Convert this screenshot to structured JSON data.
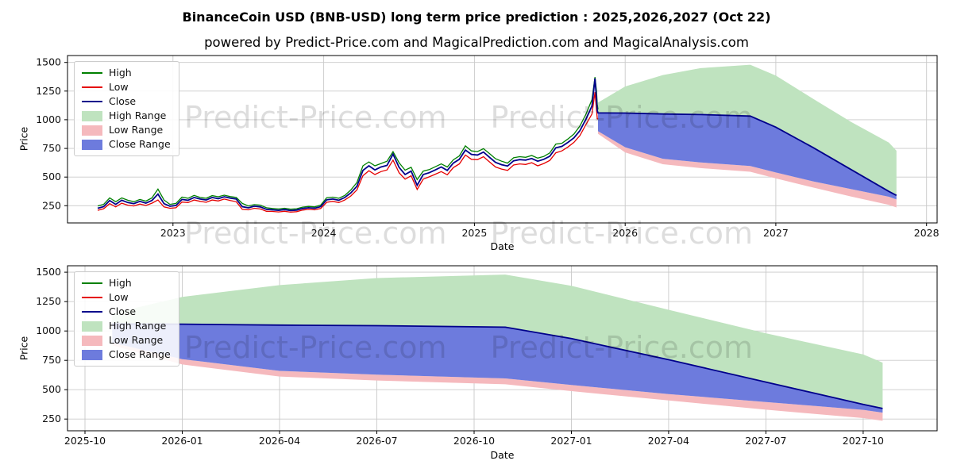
{
  "title": "BinanceCoin USD (BNB-USD) long term price prediction : 2025,2026,2027 (Oct 22)",
  "subtitle": "powered by Predict-Price.com and MagicalPrediction.com and MagicalAnalysis.com",
  "watermark": "Predict-Price.com",
  "colors": {
    "high_line": "#008000",
    "low_line": "#e50000",
    "close_line": "#00008b",
    "high_range_fill": "#bfe3bf",
    "low_range_fill": "#f5b9bd",
    "close_range_fill": "#6d7bdd",
    "grid": "#c9c9c9",
    "spine": "#000000"
  },
  "legend_items": [
    {
      "label": "High",
      "swatch": "line",
      "color": "#008000"
    },
    {
      "label": "Low",
      "swatch": "line",
      "color": "#e50000"
    },
    {
      "label": "Close",
      "swatch": "line",
      "color": "#00008b"
    },
    {
      "label": "High Range",
      "swatch": "patch",
      "color": "#bfe3bf"
    },
    {
      "label": "Low Range",
      "swatch": "patch",
      "color": "#f5b9bd"
    },
    {
      "label": "Close Range",
      "swatch": "patch",
      "color": "#6d7bdd"
    }
  ],
  "chart_data": {
    "type": "line",
    "series_names": [
      "High",
      "Low",
      "Close"
    ],
    "band_names": [
      "High Range",
      "Low Range",
      "Close Range"
    ],
    "history": {
      "x": [
        2022.5,
        2022.54,
        2022.58,
        2022.62,
        2022.66,
        2022.7,
        2022.74,
        2022.78,
        2022.82,
        2022.86,
        2022.9,
        2022.94,
        2022.98,
        2023.02,
        2023.06,
        2023.1,
        2023.14,
        2023.18,
        2023.22,
        2023.26,
        2023.3,
        2023.34,
        2023.38,
        2023.42,
        2023.46,
        2023.5,
        2023.54,
        2023.58,
        2023.62,
        2023.66,
        2023.7,
        2023.74,
        2023.78,
        2023.82,
        2023.86,
        2023.9,
        2023.94,
        2023.98,
        2024.02,
        2024.06,
        2024.1,
        2024.14,
        2024.18,
        2024.22,
        2024.26,
        2024.3,
        2024.34,
        2024.38,
        2024.42,
        2024.46,
        2024.5,
        2024.54,
        2024.58,
        2024.62,
        2024.66,
        2024.7,
        2024.74,
        2024.78,
        2024.82,
        2024.86,
        2024.9,
        2024.94,
        2024.98,
        2025.02,
        2025.06,
        2025.1,
        2025.14,
        2025.18,
        2025.22,
        2025.26,
        2025.3,
        2025.34,
        2025.38,
        2025.42,
        2025.46,
        2025.5,
        2025.54,
        2025.58,
        2025.62,
        2025.66,
        2025.7,
        2025.74,
        2025.78,
        2025.8,
        2025.81,
        2025.815,
        2025.82
      ],
      "high": [
        248,
        262,
        318,
        285,
        318,
        298,
        285,
        305,
        290,
        318,
        395,
        300,
        262,
        270,
        325,
        315,
        340,
        322,
        315,
        338,
        328,
        342,
        330,
        322,
        270,
        248,
        260,
        255,
        232,
        226,
        222,
        228,
        220,
        224,
        238,
        244,
        240,
        256,
        320,
        325,
        315,
        340,
        388,
        452,
        598,
        632,
        598,
        618,
        638,
        722,
        625,
        560,
        585,
        478,
        552,
        565,
        590,
        615,
        588,
        650,
        685,
        772,
        728,
        722,
        748,
        705,
        660,
        638,
        622,
        668,
        678,
        672,
        688,
        665,
        680,
        710,
        788,
        795,
        832,
        875,
        945,
        1048,
        1175,
        1372,
        1250,
        1130,
        1090
      ],
      "low": [
        210,
        224,
        268,
        240,
        272,
        255,
        248,
        265,
        252,
        272,
        300,
        240,
        228,
        232,
        282,
        278,
        300,
        288,
        280,
        300,
        292,
        308,
        296,
        285,
        218,
        214,
        228,
        222,
        202,
        200,
        196,
        202,
        194,
        198,
        212,
        218,
        214,
        226,
        280,
        288,
        278,
        300,
        335,
        388,
        512,
        555,
        522,
        548,
        562,
        648,
        538,
        482,
        512,
        392,
        482,
        502,
        525,
        548,
        520,
        582,
        615,
        692,
        655,
        652,
        678,
        632,
        588,
        570,
        558,
        605,
        615,
        610,
        625,
        598,
        618,
        645,
        712,
        728,
        762,
        802,
        862,
        958,
        1050,
        1240,
        1085,
        1010,
        1005
      ],
      "close": [
        228,
        242,
        295,
        262,
        298,
        278,
        268,
        288,
        272,
        296,
        352,
        268,
        246,
        252,
        305,
        298,
        322,
        308,
        300,
        322,
        312,
        328,
        316,
        308,
        242,
        232,
        246,
        240,
        218,
        214,
        210,
        216,
        208,
        212,
        226,
        232,
        228,
        242,
        302,
        308,
        298,
        322,
        362,
        420,
        558,
        598,
        562,
        588,
        602,
        700,
        585,
        522,
        552,
        428,
        522,
        538,
        562,
        588,
        558,
        622,
        655,
        735,
        698,
        692,
        718,
        672,
        628,
        608,
        596,
        642,
        652,
        648,
        662,
        638,
        655,
        682,
        755,
        768,
        802,
        842,
        905,
        1005,
        1120,
        1360,
        1180,
        1080,
        1060
      ]
    },
    "prediction": {
      "x": [
        2025.82,
        2026.0,
        2026.25,
        2026.5,
        2026.83,
        2027.0,
        2027.25,
        2027.5,
        2027.75,
        2027.8
      ],
      "close": [
        1060,
        1058,
        1050,
        1045,
        1032,
        935,
        755,
        565,
        375,
        340
      ],
      "high_range_upper": [
        1150,
        1290,
        1390,
        1450,
        1480,
        1385,
        1180,
        980,
        800,
        730
      ],
      "close_range_lower": [
        900,
        760,
        660,
        628,
        596,
        540,
        462,
        395,
        328,
        305
      ],
      "low_range_lower": [
        878,
        715,
        612,
        578,
        546,
        488,
        408,
        330,
        258,
        235
      ]
    },
    "top_chart": {
      "xlabel": "Date",
      "ylabel": "Price",
      "xlim": [
        2022.3,
        2028.07
      ],
      "ylim": [
        100,
        1560
      ],
      "xticks": [
        {
          "v": 2023,
          "label": "2023"
        },
        {
          "v": 2024,
          "label": "2024"
        },
        {
          "v": 2025,
          "label": "2025"
        },
        {
          "v": 2026,
          "label": "2026"
        },
        {
          "v": 2027,
          "label": "2027"
        },
        {
          "v": 2028,
          "label": "2028"
        }
      ],
      "yticks": [
        250,
        500,
        750,
        1000,
        1250,
        1500
      ]
    },
    "bottom_chart": {
      "xlabel": "Date",
      "ylabel": "Price",
      "xlim": [
        2025.705,
        2027.94
      ],
      "ylim": [
        150,
        1555
      ],
      "xticks": [
        {
          "v": 2025.75,
          "label": "2025-10"
        },
        {
          "v": 2026.0,
          "label": "2026-01"
        },
        {
          "v": 2026.25,
          "label": "2026-04"
        },
        {
          "v": 2026.5,
          "label": "2026-07"
        },
        {
          "v": 2026.75,
          "label": "2026-10"
        },
        {
          "v": 2027.0,
          "label": "2027-01"
        },
        {
          "v": 2027.25,
          "label": "2027-04"
        },
        {
          "v": 2027.5,
          "label": "2027-07"
        },
        {
          "v": 2027.75,
          "label": "2027-10"
        }
      ],
      "yticks": [
        250,
        500,
        750,
        1000,
        1250,
        1500
      ]
    }
  }
}
